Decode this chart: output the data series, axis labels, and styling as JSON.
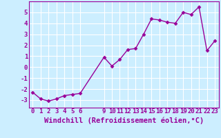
{
  "x": [
    0,
    1,
    2,
    3,
    4,
    5,
    6,
    9,
    10,
    11,
    12,
    13,
    14,
    15,
    16,
    17,
    18,
    19,
    20,
    21,
    22,
    23
  ],
  "y": [
    -2.3,
    -2.9,
    -3.1,
    -2.9,
    -2.6,
    -2.5,
    -2.4,
    0.9,
    0.1,
    0.7,
    1.6,
    1.7,
    3.0,
    4.4,
    4.3,
    4.1,
    4.0,
    5.0,
    4.8,
    5.5,
    1.5,
    2.4
  ],
  "line_color": "#990099",
  "marker": "D",
  "marker_size": 2.5,
  "bg_color": "#cceeff",
  "grid_color": "#ffffff",
  "xlabel": "Windchill (Refroidissement éolien,°C)",
  "xlabel_fontsize": 7.5,
  "xticks": [
    0,
    1,
    2,
    3,
    4,
    5,
    6,
    9,
    10,
    11,
    12,
    13,
    14,
    15,
    16,
    17,
    18,
    19,
    20,
    21,
    22,
    23
  ],
  "yticks": [
    -3,
    -2,
    -1,
    0,
    1,
    2,
    3,
    4,
    5
  ],
  "ylim": [
    -3.7,
    6.0
  ],
  "xlim": [
    -0.5,
    23.5
  ],
  "tick_fontsize": 6.5,
  "line_width": 1.0
}
